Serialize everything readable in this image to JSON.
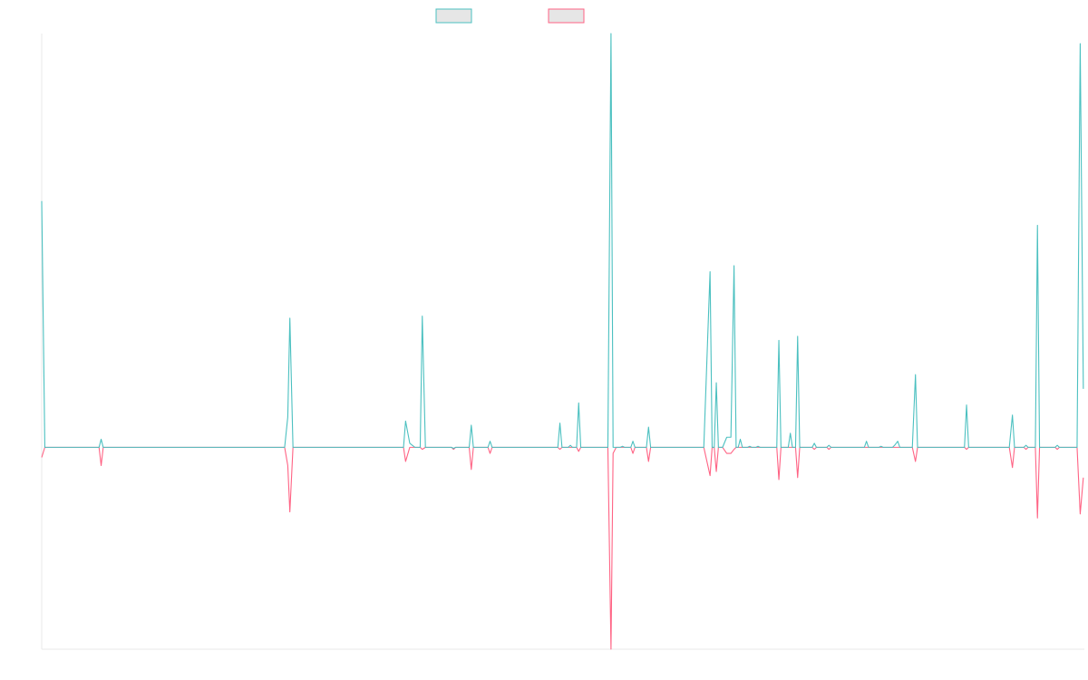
{
  "colors": {
    "series_a": "#4bc0c0",
    "series_b": "#ff6384",
    "legend_fill": "#e6e6e6",
    "axis": "#e8e8e8"
  },
  "chart_data": {
    "type": "line",
    "title": "",
    "xlabel": "",
    "ylabel": "",
    "x_range": [
      0,
      100
    ],
    "ylim": [
      -100,
      205
    ],
    "grid": false,
    "legend_position": "top-center",
    "series": [
      {
        "color": "#4bc0c0",
        "points": [
          [
            0,
            122
          ],
          [
            0.3,
            0
          ],
          [
            5.5,
            0
          ],
          [
            5.7,
            4
          ],
          [
            5.9,
            0
          ],
          [
            23.3,
            0
          ],
          [
            23.6,
            15
          ],
          [
            23.8,
            64
          ],
          [
            24.1,
            0
          ],
          [
            34.7,
            0
          ],
          [
            34.9,
            13
          ],
          [
            35.3,
            2
          ],
          [
            35.8,
            0
          ],
          [
            36.3,
            0
          ],
          [
            36.5,
            65
          ],
          [
            36.8,
            0
          ],
          [
            39.3,
            0
          ],
          [
            39.5,
            -0.5
          ],
          [
            39.7,
            0
          ],
          [
            41.0,
            0
          ],
          [
            41.2,
            11
          ],
          [
            41.4,
            0
          ],
          [
            42.8,
            0
          ],
          [
            43.0,
            3
          ],
          [
            43.2,
            0
          ],
          [
            49.5,
            0
          ],
          [
            49.7,
            12
          ],
          [
            49.9,
            0
          ],
          [
            50.5,
            0
          ],
          [
            50.7,
            1
          ],
          [
            50.9,
            0
          ],
          [
            51.3,
            0
          ],
          [
            51.5,
            22
          ],
          [
            51.7,
            0
          ],
          [
            54.3,
            0
          ],
          [
            54.6,
            205
          ],
          [
            54.8,
            0
          ],
          [
            55.5,
            0
          ],
          [
            55.7,
            0.5
          ],
          [
            55.9,
            0
          ],
          [
            56.5,
            0
          ],
          [
            56.7,
            3
          ],
          [
            56.9,
            0
          ],
          [
            58.0,
            0
          ],
          [
            58.2,
            10
          ],
          [
            58.4,
            0
          ],
          [
            63.5,
            0
          ],
          [
            64.1,
            87
          ],
          [
            64.3,
            0
          ],
          [
            64.5,
            0
          ],
          [
            64.7,
            32
          ],
          [
            64.9,
            0
          ],
          [
            65.3,
            0
          ],
          [
            65.7,
            5
          ],
          [
            66.1,
            5
          ],
          [
            66.4,
            90
          ],
          [
            66.6,
            0
          ],
          [
            66.8,
            0
          ],
          [
            67.0,
            4
          ],
          [
            67.2,
            0
          ],
          [
            67.7,
            0
          ],
          [
            67.9,
            0.5
          ],
          [
            68.1,
            0
          ],
          [
            68.5,
            0
          ],
          [
            68.7,
            0.5
          ],
          [
            68.9,
            0
          ],
          [
            70.5,
            0
          ],
          [
            70.7,
            53
          ],
          [
            70.9,
            0
          ],
          [
            71.6,
            0
          ],
          [
            71.8,
            7
          ],
          [
            72.0,
            0
          ],
          [
            72.3,
            0
          ],
          [
            72.5,
            55
          ],
          [
            72.7,
            0
          ],
          [
            73.9,
            0
          ],
          [
            74.1,
            2
          ],
          [
            74.3,
            0
          ],
          [
            75.3,
            0
          ],
          [
            75.5,
            1
          ],
          [
            75.7,
            0
          ],
          [
            78.9,
            0
          ],
          [
            79.1,
            3
          ],
          [
            79.3,
            0
          ],
          [
            80.3,
            0
          ],
          [
            80.5,
            0.5
          ],
          [
            80.7,
            0
          ],
          [
            81.6,
            0
          ],
          [
            81.8,
            1
          ],
          [
            82.1,
            3
          ],
          [
            82.3,
            0
          ],
          [
            83.5,
            0
          ],
          [
            83.8,
            36
          ],
          [
            84.0,
            0
          ],
          [
            88.5,
            0
          ],
          [
            88.7,
            21
          ],
          [
            88.9,
            0
          ],
          [
            92.8,
            0
          ],
          [
            93.1,
            16
          ],
          [
            93.3,
            0
          ],
          [
            94.2,
            0
          ],
          [
            94.4,
            1
          ],
          [
            94.6,
            0
          ],
          [
            95.3,
            0
          ],
          [
            95.5,
            110
          ],
          [
            95.7,
            0
          ],
          [
            97.2,
            0
          ],
          [
            97.4,
            1
          ],
          [
            97.6,
            0
          ],
          [
            99.3,
            0
          ],
          [
            99.6,
            200
          ],
          [
            99.9,
            29
          ]
        ]
      },
      {
        "color": "#ff6384",
        "points": [
          [
            0,
            -5
          ],
          [
            0.3,
            0
          ],
          [
            5.5,
            0
          ],
          [
            5.7,
            -9
          ],
          [
            5.9,
            0
          ],
          [
            23.3,
            0
          ],
          [
            23.6,
            -9
          ],
          [
            23.8,
            -32
          ],
          [
            24.1,
            0
          ],
          [
            34.7,
            0
          ],
          [
            34.9,
            -7
          ],
          [
            35.3,
            0
          ],
          [
            35.8,
            0
          ],
          [
            36.3,
            0
          ],
          [
            36.5,
            -1
          ],
          [
            36.8,
            0
          ],
          [
            39.3,
            0
          ],
          [
            39.5,
            -1
          ],
          [
            39.7,
            0
          ],
          [
            41.0,
            0
          ],
          [
            41.2,
            -11
          ],
          [
            41.4,
            0
          ],
          [
            42.8,
            0
          ],
          [
            43.0,
            -3
          ],
          [
            43.2,
            0
          ],
          [
            49.5,
            0
          ],
          [
            49.7,
            -1
          ],
          [
            49.9,
            0
          ],
          [
            50.5,
            0
          ],
          [
            50.7,
            0
          ],
          [
            50.9,
            0
          ],
          [
            51.3,
            0
          ],
          [
            51.5,
            -2
          ],
          [
            51.7,
            0
          ],
          [
            54.3,
            0
          ],
          [
            54.6,
            -100
          ],
          [
            54.8,
            -3
          ],
          [
            55.1,
            0
          ],
          [
            55.5,
            0
          ],
          [
            55.7,
            0
          ],
          [
            55.9,
            0
          ],
          [
            56.5,
            0
          ],
          [
            56.7,
            -3
          ],
          [
            56.9,
            0
          ],
          [
            58.0,
            0
          ],
          [
            58.2,
            -7
          ],
          [
            58.4,
            0
          ],
          [
            63.5,
            0
          ],
          [
            64.1,
            -14
          ],
          [
            64.3,
            0
          ],
          [
            64.5,
            0
          ],
          [
            64.7,
            -12
          ],
          [
            64.9,
            0
          ],
          [
            65.3,
            0
          ],
          [
            65.7,
            -3
          ],
          [
            66.1,
            -3
          ],
          [
            66.4,
            -1
          ],
          [
            66.6,
            0
          ],
          [
            66.8,
            0
          ],
          [
            67.0,
            0
          ],
          [
            67.2,
            0
          ],
          [
            67.7,
            0
          ],
          [
            67.9,
            0
          ],
          [
            68.1,
            0
          ],
          [
            68.5,
            0
          ],
          [
            68.7,
            0
          ],
          [
            68.9,
            0
          ],
          [
            70.5,
            0
          ],
          [
            70.7,
            -16
          ],
          [
            70.9,
            0
          ],
          [
            71.6,
            0
          ],
          [
            71.8,
            0
          ],
          [
            72.0,
            0
          ],
          [
            72.3,
            0
          ],
          [
            72.5,
            -15
          ],
          [
            72.7,
            0
          ],
          [
            73.9,
            0
          ],
          [
            74.1,
            -1
          ],
          [
            74.3,
            0
          ],
          [
            75.3,
            0
          ],
          [
            75.5,
            -1
          ],
          [
            75.7,
            0
          ],
          [
            78.9,
            0
          ],
          [
            79.1,
            0
          ],
          [
            79.3,
            0
          ],
          [
            80.3,
            0
          ],
          [
            80.5,
            0
          ],
          [
            80.7,
            0
          ],
          [
            81.6,
            0
          ],
          [
            81.8,
            0
          ],
          [
            82.1,
            0
          ],
          [
            82.3,
            0
          ],
          [
            83.5,
            0
          ],
          [
            83.8,
            -7
          ],
          [
            84.0,
            0
          ],
          [
            88.5,
            0
          ],
          [
            88.7,
            -1
          ],
          [
            88.9,
            0
          ],
          [
            92.8,
            0
          ],
          [
            93.1,
            -10
          ],
          [
            93.3,
            0
          ],
          [
            94.2,
            0
          ],
          [
            94.4,
            -1
          ],
          [
            94.6,
            0
          ],
          [
            95.3,
            0
          ],
          [
            95.5,
            -35
          ],
          [
            95.7,
            0
          ],
          [
            97.2,
            0
          ],
          [
            97.4,
            -1
          ],
          [
            97.6,
            0
          ],
          [
            99.3,
            0
          ],
          [
            99.6,
            -33
          ],
          [
            99.9,
            -15
          ]
        ]
      }
    ]
  }
}
